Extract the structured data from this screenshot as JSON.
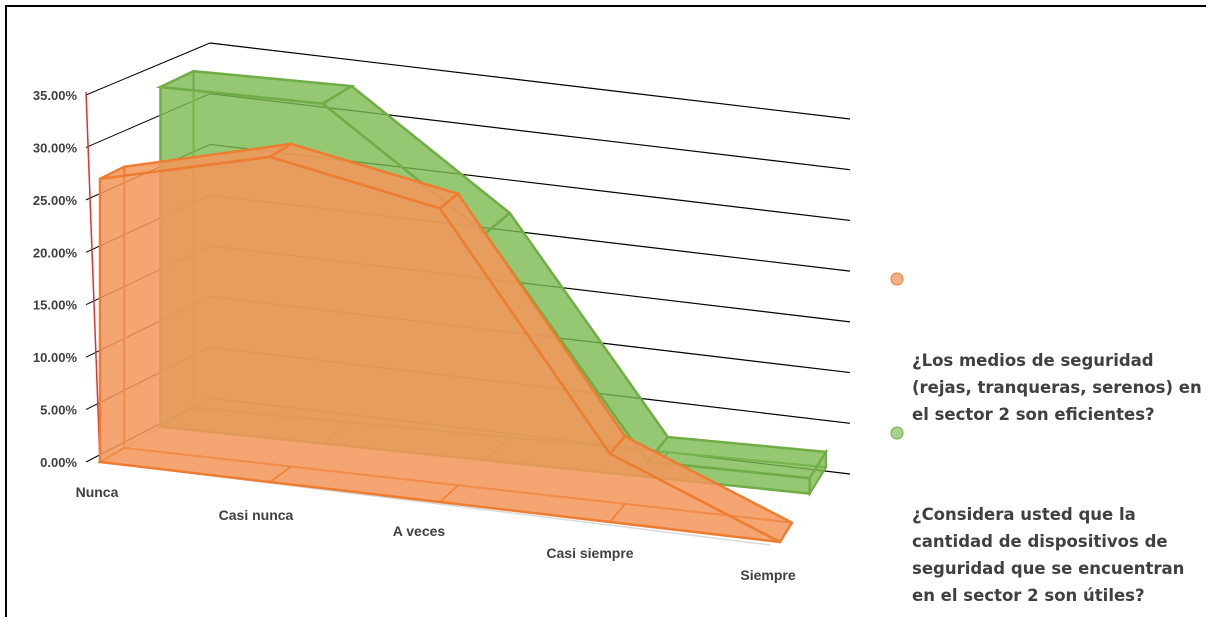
{
  "chart_data": {
    "type": "area",
    "three_d": true,
    "categories": [
      "Nunca",
      "Casi nunca",
      "A veces",
      "Casi siempre",
      "Siempre"
    ],
    "series": [
      {
        "name": "¿Los medios de seguridad (rejas, tranqueras, serenos) en el sector 2 son eficientes?",
        "values": [
          0.27,
          0.31,
          0.28,
          0.065,
          0.0
        ],
        "color": "#ED7D31"
      },
      {
        "name": "¿Considera usted que la cantidad de dispositivos de seguridad que se encuentran en el sector 2 son útiles?",
        "values": [
          0.33,
          0.33,
          0.22,
          0.015,
          0.015
        ],
        "color": "#70AD47"
      }
    ],
    "yticks": [
      "0.00%",
      "5.00%",
      "10.00%",
      "15.00%",
      "20.00%",
      "25.00%",
      "30.00%",
      "35.00%"
    ],
    "ylim": [
      0,
      0.35
    ],
    "grid": true,
    "legend_position": "right"
  }
}
